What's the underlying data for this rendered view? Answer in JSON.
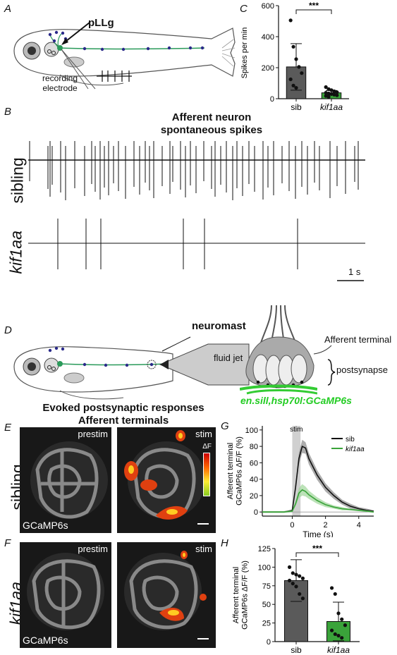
{
  "panels": {
    "A": "A",
    "B": "B",
    "C": "C",
    "D": "D",
    "E": "E",
    "F": "F",
    "G": "G",
    "H": "H"
  },
  "panelA": {
    "pllg_label": "pLLg",
    "electrode_label": "recording\nelectrode"
  },
  "panelB": {
    "title_line1": "Afferent neuron",
    "title_line2": "spontaneous spikes",
    "row1": "sibling",
    "row2": "kif1aa",
    "scale_label": "1 s"
  },
  "panelD": {
    "neuromast_label": "neuromast",
    "fluid_jet_label": "fluid jet",
    "afferent_terminal_label": "Afferent terminal",
    "postsynapse_label": "postsynapse",
    "transgene_label": "en.sill,hsp70l:GCaMP6s"
  },
  "panelEF": {
    "title_line1": "Evoked postsynaptic responses",
    "title_line2": "Afferent terminals",
    "prestim": "prestim",
    "stim": "stim",
    "gcamp": "GCaMP6s",
    "delta_f": "ΔF",
    "row_sibling": "sibling",
    "row_kif1aa": "kif1aa"
  },
  "colors": {
    "sib": "#5a5a5a",
    "kif1aa": "#3aa33a",
    "bright_green": "#22cc22"
  },
  "chart_data": [
    {
      "type": "bar",
      "panel": "C",
      "categories": [
        "sib",
        "kif1aa"
      ],
      "ylabel": "Spikes per min",
      "ylim": [
        0,
        600
      ],
      "yticks": [
        0,
        200,
        400,
        600
      ],
      "values": [
        205,
        38
      ],
      "error": [
        150,
        15
      ],
      "points": {
        "sib": [
          505,
          335,
          255,
          205,
          165,
          125,
          85,
          70
        ],
        "kif1aa": [
          75,
          62,
          55,
          48,
          42,
          38,
          34,
          30,
          26,
          22,
          18,
          12
        ]
      },
      "significance": "***"
    },
    {
      "type": "line",
      "panel": "G",
      "xlabel": "Time (s)",
      "ylabel": "Afferent terminal\nGCaMP6s ΔF/F (%)",
      "xlim": [
        -1.8,
        4.9
      ],
      "ylim": [
        -5,
        105
      ],
      "xticks": [
        0,
        2,
        4
      ],
      "yticks": [
        0,
        20,
        40,
        60,
        80,
        100
      ],
      "stim_label": "stim",
      "series": [
        {
          "name": "sib",
          "x": [
            -1.8,
            -1,
            -0.5,
            0,
            0.2,
            0.4,
            0.6,
            0.8,
            1,
            1.5,
            2,
            2.5,
            3,
            3.5,
            4,
            4.5,
            4.9
          ],
          "y": [
            0,
            0,
            0,
            2,
            30,
            65,
            80,
            78,
            65,
            45,
            30,
            20,
            12,
            7,
            4,
            2,
            1
          ],
          "err": [
            1,
            1,
            1,
            1,
            4,
            7,
            8,
            7,
            7,
            6,
            5,
            4,
            3,
            3,
            2,
            2,
            1
          ]
        },
        {
          "name": "kif1aa",
          "x": [
            -1.8,
            -1,
            -0.5,
            0,
            0.2,
            0.4,
            0.6,
            0.8,
            1,
            1.5,
            2,
            2.5,
            3,
            3.5,
            4,
            4.5,
            4.9
          ],
          "y": [
            0,
            0,
            0,
            1,
            10,
            23,
            27,
            25,
            21,
            14,
            9,
            6,
            4,
            3,
            2,
            1,
            0
          ],
          "err": [
            1,
            1,
            1,
            1,
            3,
            6,
            7,
            6,
            5,
            4,
            3,
            2,
            2,
            1,
            1,
            1,
            1
          ]
        }
      ]
    },
    {
      "type": "bar",
      "panel": "H",
      "categories": [
        "sib",
        "kif1aa"
      ],
      "ylabel": "Afferent terminal\nGCaMP6s ΔF/F (%)",
      "ylim": [
        0,
        125
      ],
      "yticks": [
        0,
        25,
        50,
        75,
        100,
        125
      ],
      "values": [
        82,
        27
      ],
      "error": [
        28,
        26
      ],
      "points": {
        "sib": [
          100,
          92,
          90,
          88,
          85,
          82,
          78,
          74,
          64,
          58
        ],
        "kif1aa": [
          72,
          64,
          38,
          30,
          22,
          15,
          10,
          8,
          5
        ]
      },
      "significance": "***"
    }
  ]
}
